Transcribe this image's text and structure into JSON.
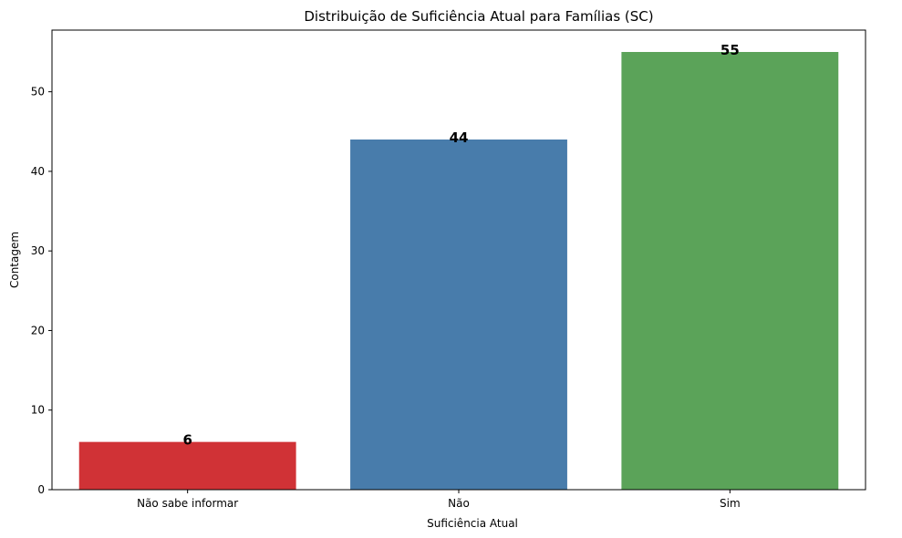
{
  "chart_data": {
    "type": "bar",
    "title": "Distribuição de Suficiência Atual para Famílias (SC)",
    "xlabel": "Suficiência Atual",
    "ylabel": "Contagem",
    "categories": [
      "Não sabe informar",
      "Não",
      "Sim"
    ],
    "values": [
      6,
      44,
      55
    ],
    "data_labels": [
      "6",
      "44",
      "55"
    ],
    "colors": [
      "#d03236",
      "#487cab",
      "#5ba359"
    ],
    "ylim": [
      0,
      57.75
    ],
    "yticks": [
      0,
      10,
      20,
      30,
      40,
      50
    ],
    "ytick_labels": [
      "0",
      "10",
      "20",
      "30",
      "40",
      "50"
    ],
    "grid": false,
    "legend": "none"
  }
}
